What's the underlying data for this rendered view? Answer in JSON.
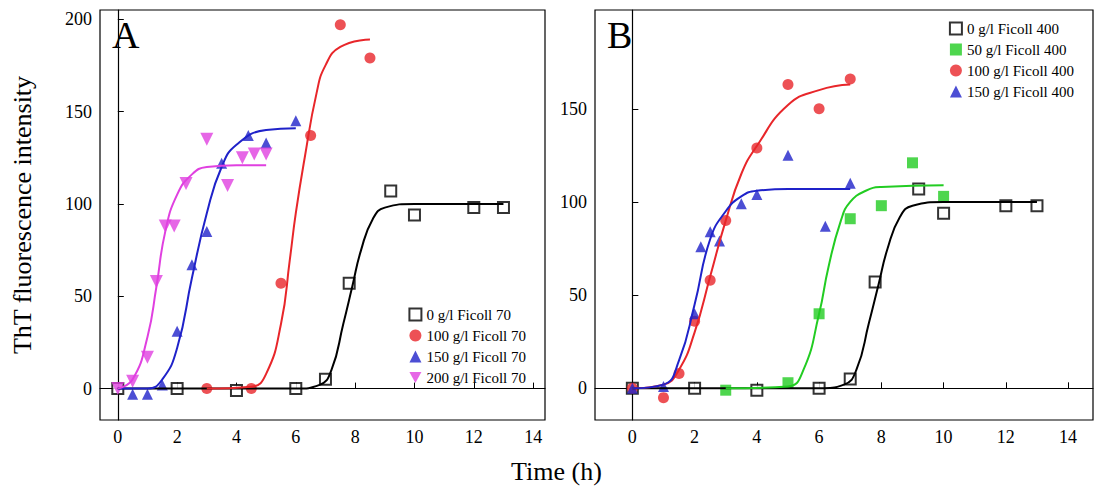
{
  "xlabel": "Time (h)",
  "ylabel": "ThT fluorescence intensity",
  "chart_data": [
    {
      "type": "scatter",
      "label": "A",
      "legend": "lower right",
      "xlim": [
        -0.6,
        14.4
      ],
      "xticks": [
        0,
        2,
        4,
        6,
        8,
        10,
        12,
        14
      ],
      "ylim": [
        -17,
        205
      ],
      "yticks": [
        0,
        50,
        100,
        150,
        200
      ],
      "grid": false,
      "series": [
        {
          "name": "0 g/l Ficoll 70",
          "color": "#000000",
          "marker": "open_square",
          "x": [
            0,
            2,
            4,
            6,
            7,
            7.8,
            9.2,
            10,
            12,
            13
          ],
          "values": [
            0,
            0,
            -1,
            0,
            5,
            57,
            107,
            94,
            98,
            98
          ],
          "fit": {
            "x": [
              0,
              6,
              6.8,
              7.2,
              7.6,
              7.9,
              8.2,
              8.6,
              9,
              10,
              13
            ],
            "values": [
              0,
              0,
              2,
              10,
              35,
              55,
              75,
              92,
              98,
              100,
              100
            ]
          }
        },
        {
          "name": "100 g/l Ficoll 70",
          "color": "#e8262a",
          "marker": "circle",
          "x": [
            3,
            4.5,
            5.5,
            6.5,
            7.5,
            8.5
          ],
          "values": [
            0,
            0,
            57,
            137,
            197,
            179
          ],
          "fit": {
            "x": [
              3,
              4.5,
              5,
              5.5,
              5.8,
              6,
              6.3,
              6.7,
              7,
              7.5,
              8.5
            ],
            "values": [
              0,
              1,
              8,
              35,
              70,
              95,
              125,
              160,
              175,
              185,
              189
            ]
          }
        },
        {
          "name": "150 g/l Ficoll 70",
          "color": "#1f22c9",
          "marker": "triangle",
          "x": [
            0.5,
            1,
            1.5,
            2,
            2.5,
            3,
            3.5,
            4.4,
            5,
            6
          ],
          "values": [
            -3,
            -3,
            2,
            31,
            67,
            85,
            122,
            137,
            133,
            145
          ],
          "fit": {
            "x": [
              0,
              1,
              1.5,
              2,
              2.5,
              3,
              3.5,
              4,
              5,
              6
            ],
            "values": [
              0,
              0,
              5,
              22,
              60,
              95,
              120,
              132,
              140,
              141
            ]
          }
        },
        {
          "name": "200 g/l Ficoll 70",
          "color": "#e040e0",
          "marker": "triangle_down",
          "x": [
            0,
            0.5,
            1,
            1.3,
            1.6,
            1.9,
            2.3,
            3,
            3.7,
            4.2,
            4.6,
            5
          ],
          "values": [
            0,
            4,
            17,
            58,
            88,
            88,
            111,
            135,
            110,
            125,
            127,
            127
          ],
          "fit": {
            "x": [
              0,
              0.5,
              1,
              1.3,
              1.6,
              2,
              2.5,
              3,
              4,
              5
            ],
            "values": [
              0,
              5,
              28,
              55,
              85,
              105,
              116,
              120,
              121,
              121
            ]
          }
        }
      ]
    },
    {
      "type": "scatter",
      "label": "B",
      "legend": "upper right",
      "xlim": [
        -1.2,
        14.8
      ],
      "xticks": [
        0,
        2,
        4,
        6,
        8,
        10,
        12,
        14
      ],
      "ylim": [
        -17,
        203
      ],
      "yticks": [
        0,
        50,
        100,
        150
      ],
      "grid": false,
      "series": [
        {
          "name": "0 g/l Ficoll 400",
          "color": "#000000",
          "marker": "open_square",
          "x": [
            0,
            2,
            4,
            6,
            7,
            7.8,
            9.2,
            10,
            12,
            13
          ],
          "values": [
            0,
            0,
            -1,
            0,
            5,
            57,
            107,
            94,
            98,
            98
          ],
          "fit": {
            "x": [
              0,
              6,
              6.8,
              7.2,
              7.6,
              7.9,
              8.2,
              8.6,
              9,
              10,
              13
            ],
            "values": [
              0,
              0,
              2,
              10,
              35,
              55,
              75,
              92,
              98,
              100,
              100
            ]
          }
        },
        {
          "name": "50 g/l Ficoll 400",
          "color": "#22cc22",
          "marker": "square",
          "x": [
            3,
            5,
            6,
            7,
            8,
            9,
            10
          ],
          "values": [
            -1,
            3,
            40,
            91,
            98,
            121,
            103
          ],
          "fit": {
            "x": [
              3,
              5,
              5.5,
              6,
              6.3,
              6.7,
              7,
              7.5,
              8,
              10
            ],
            "values": [
              0,
              1,
              10,
              40,
              65,
              90,
              100,
              106,
              108,
              109
            ]
          }
        },
        {
          "name": "100 g/l Ficoll 400",
          "color": "#e8262a",
          "marker": "circle",
          "x": [
            0,
            1,
            1.5,
            2,
            2.5,
            3,
            4,
            5,
            6,
            7
          ],
          "values": [
            0,
            -5,
            8,
            36,
            58,
            90,
            129,
            163,
            150,
            166
          ],
          "fit": {
            "x": [
              0,
              1,
              1.5,
              2,
              2.5,
              3,
              3.5,
              4,
              5,
              6,
              7
            ],
            "values": [
              0,
              2,
              10,
              30,
              60,
              90,
              115,
              130,
              152,
              160,
              163
            ]
          }
        },
        {
          "name": "150 g/l Ficoll 400",
          "color": "#1f22c9",
          "marker": "triangle",
          "x": [
            0,
            1,
            2,
            2.2,
            2.5,
            2.8,
            3.5,
            4,
            5,
            6.2,
            7
          ],
          "values": [
            0,
            1,
            40,
            76,
            84,
            79,
            99,
            104,
            125,
            87,
            110
          ],
          "fit": {
            "x": [
              0,
              1,
              1.5,
              2,
              2.5,
              3,
              3.5,
              4,
              5,
              7
            ],
            "values": [
              0,
              2,
              15,
              45,
              80,
              95,
              103,
              106,
              107,
              107
            ]
          }
        }
      ]
    }
  ]
}
